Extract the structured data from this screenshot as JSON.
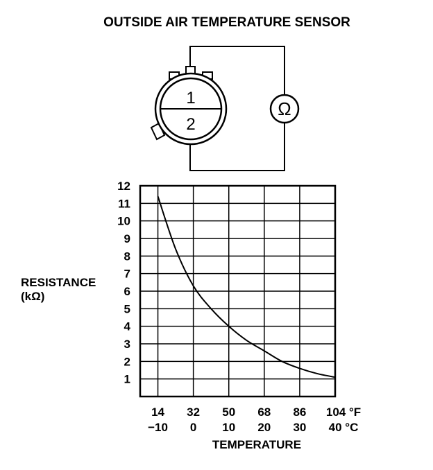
{
  "title": "OUTSIDE AIR TEMPERATURE SENSOR",
  "diagram": {
    "terminal_1": "1",
    "terminal_2": "2",
    "meter_symbol": "Ω",
    "icons": [
      "sensor-connector-icon",
      "ohmmeter-icon"
    ]
  },
  "chart_data": {
    "type": "line",
    "title": "OUTSIDE AIR TEMPERATURE SENSOR",
    "ylabel": "RESISTANCE",
    "yunit": "(kΩ)",
    "xlabel": "TEMPERATURE",
    "ylim": [
      0,
      12
    ],
    "xlim_c": [
      -15,
      40
    ],
    "grid": true,
    "y_ticks": [
      "12",
      "11",
      "10",
      "9",
      "8",
      "7",
      "6",
      "5",
      "4",
      "3",
      "2",
      "1"
    ],
    "x_ticks_f": [
      "14",
      "32",
      "50",
      "68",
      "86",
      "104 °F"
    ],
    "x_ticks_c": [
      "−10",
      "0",
      "10",
      "20",
      "30",
      "40 °C"
    ],
    "x_tick_values_c": [
      -10,
      0,
      10,
      20,
      30,
      40
    ],
    "series": [
      {
        "name": "Resistance",
        "x": [
          -10,
          -5,
          0,
          5,
          10,
          15,
          20,
          25,
          30,
          35,
          40
        ],
        "y": [
          11.4,
          8.4,
          6.3,
          5.0,
          4.0,
          3.2,
          2.6,
          2.0,
          1.6,
          1.3,
          1.1
        ]
      }
    ]
  }
}
